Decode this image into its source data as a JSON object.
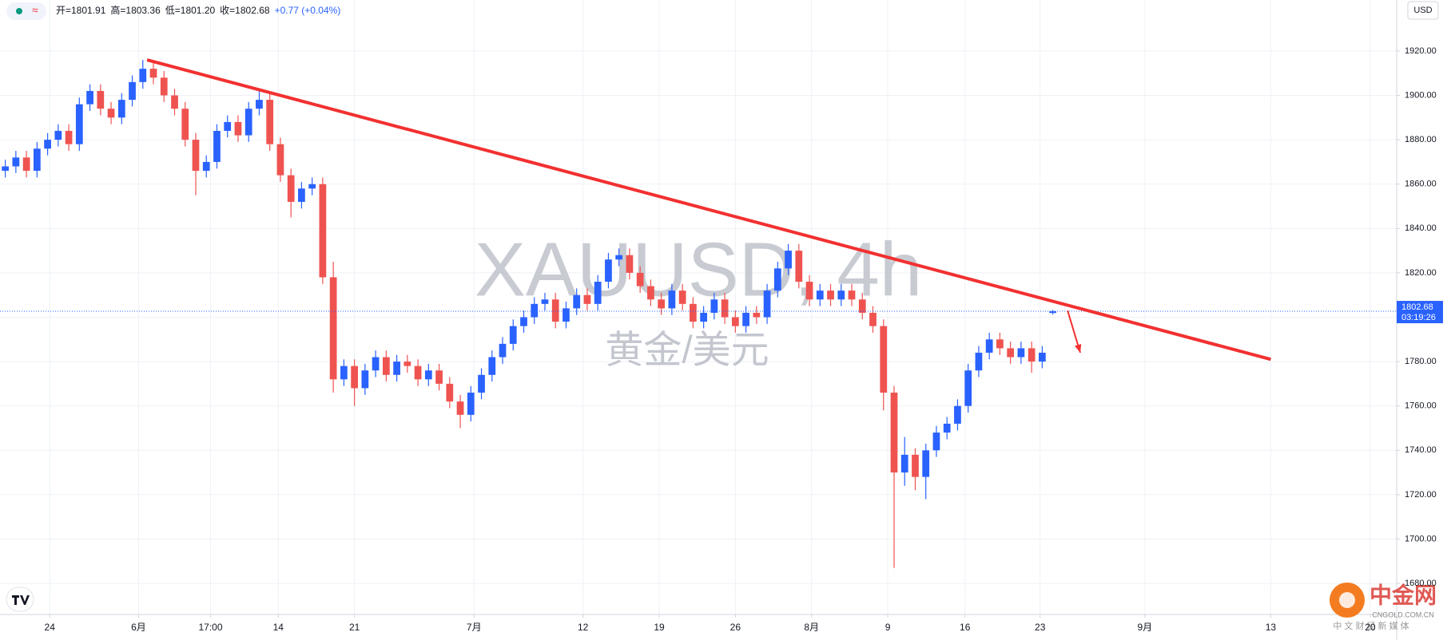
{
  "chart_data": {
    "type": "candlestick",
    "header": {
      "items": [
        "开=1801.91",
        "高=1803.36",
        "低=1801.20",
        "收=1802.68",
        "+0.77 (+0.04%)"
      ]
    },
    "currency": "USD",
    "watermark": [
      "XAUUSD, 4h",
      "黄金/美元"
    ],
    "brand": {
      "name": "中金网",
      "domain": "CNGOLD.COM.CN",
      "slogan": "中 文 财 经 新 媒 体"
    },
    "open": [
      1866,
      1868,
      1872,
      1866,
      1876,
      1880,
      1884,
      1878,
      1896,
      1902,
      1894,
      1890,
      1898,
      1906,
      1912,
      1908,
      1900,
      1894,
      1880,
      1866,
      1870,
      1884,
      1888,
      1882,
      1894,
      1898,
      1878,
      1864,
      1852,
      1858,
      1860,
      1818,
      1772,
      1778,
      1768,
      1776,
      1782,
      1774,
      1780,
      1778,
      1772,
      1776,
      1770,
      1762,
      1756,
      1766,
      1774,
      1782,
      1788,
      1796,
      1800,
      1806,
      1808,
      1798,
      1804,
      1810,
      1806,
      1816,
      1826,
      1828,
      1820,
      1814,
      1808,
      1804,
      1812,
      1806,
      1798,
      1802,
      1808,
      1800,
      1796,
      1802,
      1800,
      1812,
      1822,
      1830,
      1816,
      1808,
      1812,
      1808,
      1812,
      1808,
      1802,
      1796,
      1766,
      1730,
      1738,
      1728,
      1740,
      1748,
      1752,
      1760,
      1776,
      1784,
      1790,
      1786,
      1782,
      1786,
      1780,
      1801.91
    ],
    "high": [
      1871,
      1875,
      1875,
      1879,
      1883,
      1887,
      1887,
      1899,
      1905,
      1905,
      1897,
      1901,
      1909,
      1916,
      1915,
      1911,
      1903,
      1897,
      1883,
      1873,
      1887,
      1891,
      1891,
      1897,
      1902,
      1901,
      1881,
      1867,
      1861,
      1863,
      1863,
      1825,
      1781,
      1781,
      1779,
      1785,
      1785,
      1783,
      1783,
      1781,
      1779,
      1779,
      1773,
      1765,
      1769,
      1777,
      1785,
      1791,
      1799,
      1803,
      1809,
      1811,
      1811,
      1807,
      1813,
      1813,
      1819,
      1829,
      1831,
      1831,
      1823,
      1817,
      1811,
      1815,
      1815,
      1809,
      1805,
      1811,
      1811,
      1803,
      1805,
      1805,
      1815,
      1825,
      1833,
      1833,
      1819,
      1815,
      1815,
      1815,
      1815,
      1811,
      1805,
      1799,
      1769,
      1746,
      1741,
      1743,
      1751,
      1755,
      1763,
      1779,
      1787,
      1793,
      1793,
      1789,
      1789,
      1789,
      1787,
      1803.36
    ],
    "low": [
      1863,
      1865,
      1863,
      1863,
      1873,
      1877,
      1875,
      1875,
      1893,
      1891,
      1887,
      1887,
      1895,
      1903,
      1905,
      1897,
      1891,
      1877,
      1855,
      1863,
      1867,
      1881,
      1879,
      1879,
      1891,
      1875,
      1861,
      1845,
      1849,
      1855,
      1815,
      1766,
      1769,
      1760,
      1765,
      1773,
      1771,
      1771,
      1775,
      1769,
      1769,
      1767,
      1759,
      1750,
      1753,
      1763,
      1771,
      1779,
      1785,
      1793,
      1797,
      1803,
      1795,
      1795,
      1801,
      1803,
      1803,
      1813,
      1823,
      1817,
      1811,
      1805,
      1801,
      1801,
      1803,
      1795,
      1795,
      1799,
      1797,
      1793,
      1793,
      1797,
      1797,
      1809,
      1819,
      1813,
      1805,
      1805,
      1805,
      1805,
      1805,
      1799,
      1793,
      1758,
      1687,
      1724,
      1722,
      1718,
      1737,
      1745,
      1749,
      1757,
      1773,
      1781,
      1783,
      1779,
      1779,
      1775,
      1777,
      1801.2
    ],
    "close": [
      1868,
      1872,
      1866,
      1876,
      1880,
      1884,
      1878,
      1896,
      1902,
      1894,
      1890,
      1898,
      1906,
      1912,
      1908,
      1900,
      1894,
      1880,
      1866,
      1870,
      1884,
      1888,
      1882,
      1894,
      1898,
      1878,
      1864,
      1852,
      1858,
      1860,
      1818,
      1772,
      1778,
      1768,
      1776,
      1782,
      1774,
      1780,
      1778,
      1772,
      1776,
      1770,
      1762,
      1756,
      1766,
      1774,
      1782,
      1788,
      1796,
      1800,
      1806,
      1808,
      1798,
      1804,
      1810,
      1806,
      1816,
      1826,
      1828,
      1820,
      1814,
      1808,
      1804,
      1812,
      1806,
      1798,
      1802,
      1808,
      1800,
      1796,
      1802,
      1800,
      1812,
      1822,
      1830,
      1816,
      1808,
      1812,
      1808,
      1812,
      1808,
      1802,
      1796,
      1766,
      1730,
      1738,
      1728,
      1740,
      1748,
      1752,
      1760,
      1776,
      1784,
      1790,
      1786,
      1782,
      1786,
      1780,
      1784,
      1802.68
    ],
    "up_color": "#2962ff",
    "down_color": "#ef5350",
    "last_price": {
      "value": 1802.68,
      "label": "1802.68",
      "countdown": "03:19:26"
    },
    "trendline": {
      "x": [
        13.9,
        120.1
      ],
      "y": [
        1916,
        1781
      ],
      "color": "#f23030"
    },
    "arrow": {
      "x": [
        100.9,
        102.1
      ],
      "y": [
        1803,
        1784
      ],
      "color": "#f23030"
    },
    "xlim": [
      0,
      132
    ],
    "xticks": [
      {
        "value": 4.7,
        "label": "24"
      },
      {
        "value": 13.1,
        "label": "6月"
      },
      {
        "value": 19.9,
        "label": "17:00"
      },
      {
        "value": 26.3,
        "label": "14"
      },
      {
        "value": 33.5,
        "label": "21"
      },
      {
        "value": 44.8,
        "label": "7月"
      },
      {
        "value": 55.1,
        "label": "12"
      },
      {
        "value": 62.3,
        "label": "19"
      },
      {
        "value": 69.5,
        "label": "26"
      },
      {
        "value": 76.7,
        "label": "8月"
      },
      {
        "value": 83.9,
        "label": "9"
      },
      {
        "value": 91.2,
        "label": "16"
      },
      {
        "value": 98.3,
        "label": "23"
      },
      {
        "value": 108.2,
        "label": "9月"
      },
      {
        "value": 120.1,
        "label": "13"
      },
      {
        "value": 129.5,
        "label": "20"
      }
    ],
    "ylim": [
      1666,
      1943
    ],
    "yticks": [
      {
        "value": 1680,
        "label": "1680.00"
      },
      {
        "value": 1700,
        "label": "1700.00"
      },
      {
        "value": 1720,
        "label": "1720.00"
      },
      {
        "value": 1740,
        "label": "1740.00"
      },
      {
        "value": 1760,
        "label": "1760.00"
      },
      {
        "value": 1780,
        "label": "1780.00"
      },
      {
        "value": 1800,
        "label": "1800.00"
      },
      {
        "value": 1820,
        "label": "1820.00"
      },
      {
        "value": 1840,
        "label": "1840.00"
      },
      {
        "value": 1860,
        "label": "1860.00"
      },
      {
        "value": 1880,
        "label": "1880.00"
      },
      {
        "value": 1900,
        "label": "1900.00"
      },
      {
        "value": 1920,
        "label": "1920.00"
      }
    ],
    "grid": true
  }
}
